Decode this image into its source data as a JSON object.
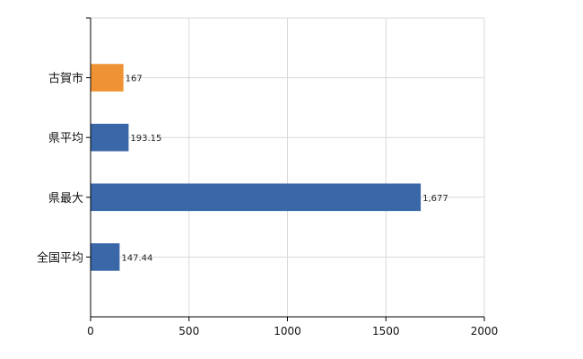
{
  "chart_data": {
    "type": "bar",
    "orientation": "horizontal",
    "categories": [
      "古賀市",
      "県平均",
      "県最大",
      "全国平均"
    ],
    "values": [
      167,
      193.15,
      1677,
      147.44
    ],
    "data_labels": [
      "167",
      "193.15",
      "1,677",
      "147.44"
    ],
    "bar_colors": [
      "#ef9234",
      "#3a67a8",
      "#3a67a8",
      "#3a67a8"
    ],
    "xlim": [
      0,
      2000
    ],
    "x_ticks": [
      0,
      500,
      1000,
      1500,
      2000
    ],
    "x_tick_labels": [
      "0",
      "500",
      "1000",
      "1500",
      "2000"
    ],
    "grid": true,
    "title": "",
    "xlabel": "",
    "ylabel": ""
  }
}
